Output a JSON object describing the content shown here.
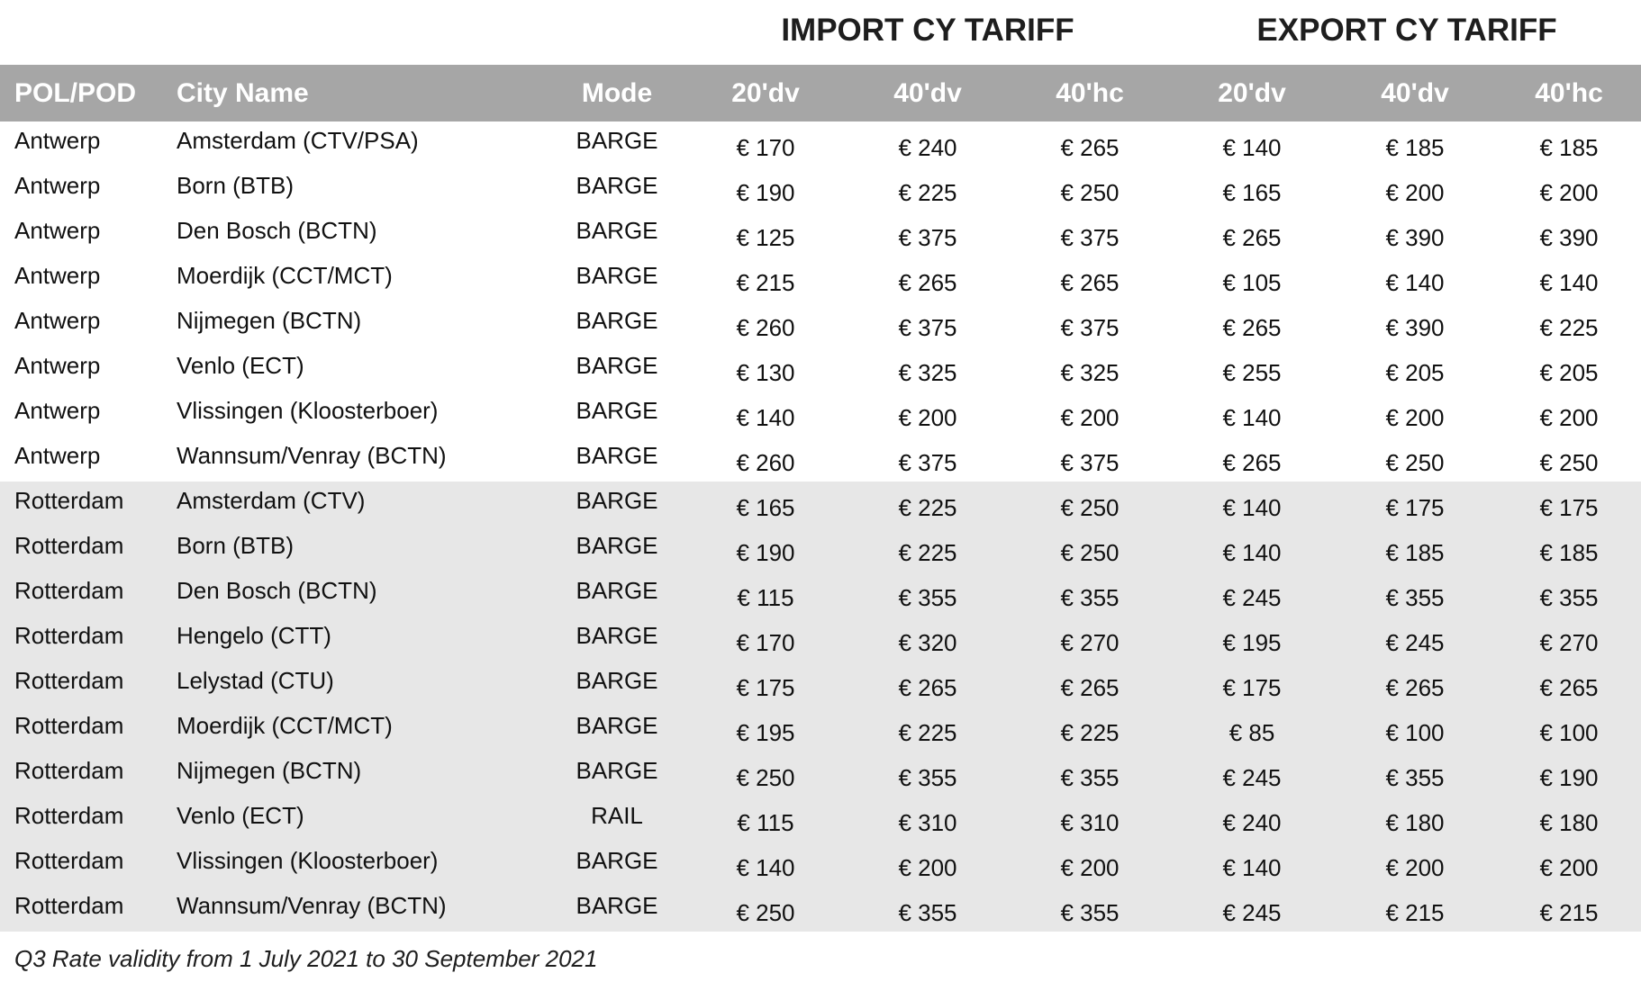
{
  "group_headers": {
    "import": "IMPORT CY TARIFF",
    "export": "EXPORT CY TARIFF"
  },
  "columns": [
    "POL/POD",
    "City Name",
    "Mode",
    "20'dv",
    "40'dv",
    "40'hc",
    "20'dv",
    "40'dv",
    "40'hc"
  ],
  "rows": [
    {
      "pol": "Antwerp",
      "city": "Amsterdam (CTV/PSA)",
      "mode": "BARGE",
      "imp": [
        "€ 170",
        "€ 240",
        "€ 265"
      ],
      "exp": [
        "€ 140",
        "€ 185",
        "€ 185"
      ]
    },
    {
      "pol": "Antwerp",
      "city": "Born (BTB)",
      "mode": "BARGE",
      "imp": [
        "€ 190",
        "€ 225",
        "€ 250"
      ],
      "exp": [
        "€ 165",
        "€ 200",
        "€ 200"
      ]
    },
    {
      "pol": "Antwerp",
      "city": "Den Bosch (BCTN)",
      "mode": "BARGE",
      "imp": [
        "€ 125",
        "€ 375",
        "€ 375"
      ],
      "exp": [
        "€ 265",
        "€ 390",
        "€ 390"
      ]
    },
    {
      "pol": "Antwerp",
      "city": "Moerdijk (CCT/MCT)",
      "mode": "BARGE",
      "imp": [
        "€ 215",
        "€ 265",
        "€ 265"
      ],
      "exp": [
        "€ 105",
        "€ 140",
        "€ 140"
      ]
    },
    {
      "pol": "Antwerp",
      "city": "Nijmegen (BCTN)",
      "mode": "BARGE",
      "imp": [
        "€ 260",
        "€ 375",
        "€ 375"
      ],
      "exp": [
        "€ 265",
        "€ 390",
        "€ 225"
      ]
    },
    {
      "pol": "Antwerp",
      "city": "Venlo (ECT)",
      "mode": "BARGE",
      "imp": [
        "€ 130",
        "€ 325",
        "€ 325"
      ],
      "exp": [
        "€ 255",
        "€ 205",
        "€ 205"
      ]
    },
    {
      "pol": "Antwerp",
      "city": "Vlissingen (Kloosterboer)",
      "mode": "BARGE",
      "imp": [
        "€ 140",
        "€ 200",
        "€ 200"
      ],
      "exp": [
        "€ 140",
        "€ 200",
        "€ 200"
      ]
    },
    {
      "pol": "Antwerp",
      "city": "Wannsum/Venray (BCTN)",
      "mode": "BARGE",
      "imp": [
        "€ 260",
        "€ 375",
        "€ 375"
      ],
      "exp": [
        "€ 265",
        "€ 250",
        "€ 250"
      ]
    },
    {
      "pol": "Rotterdam",
      "city": "Amsterdam (CTV)",
      "mode": "BARGE",
      "imp": [
        "€ 165",
        "€ 225",
        "€ 250"
      ],
      "exp": [
        "€ 140",
        "€ 175",
        "€ 175"
      ]
    },
    {
      "pol": "Rotterdam",
      "city": "Born (BTB)",
      "mode": "BARGE",
      "imp": [
        "€ 190",
        "€ 225",
        "€ 250"
      ],
      "exp": [
        "€ 140",
        "€ 185",
        "€ 185"
      ]
    },
    {
      "pol": "Rotterdam",
      "city": "Den Bosch (BCTN)",
      "mode": "BARGE",
      "imp": [
        "€ 115",
        "€ 355",
        "€ 355"
      ],
      "exp": [
        "€ 245",
        "€ 355",
        "€ 355"
      ]
    },
    {
      "pol": "Rotterdam",
      "city": "Hengelo (CTT)",
      "mode": "BARGE",
      "imp": [
        "€ 170",
        "€ 320",
        "€ 270"
      ],
      "exp": [
        "€ 195",
        "€ 245",
        "€ 270"
      ]
    },
    {
      "pol": "Rotterdam",
      "city": "Lelystad (CTU)",
      "mode": "BARGE",
      "imp": [
        "€ 175",
        "€ 265",
        "€ 265"
      ],
      "exp": [
        "€ 175",
        "€ 265",
        "€ 265"
      ]
    },
    {
      "pol": "Rotterdam",
      "city": "Moerdijk (CCT/MCT)",
      "mode": "BARGE",
      "imp": [
        "€ 195",
        "€ 225",
        "€ 225"
      ],
      "exp": [
        "€ 85",
        "€ 100",
        "€ 100"
      ]
    },
    {
      "pol": "Rotterdam",
      "city": "Nijmegen (BCTN)",
      "mode": "BARGE",
      "imp": [
        "€ 250",
        "€ 355",
        "€ 355"
      ],
      "exp": [
        "€ 245",
        "€ 355",
        "€ 190"
      ]
    },
    {
      "pol": "Rotterdam",
      "city": "Venlo (ECT)",
      "mode": "RAIL",
      "imp": [
        "€ 115",
        "€ 310",
        "€ 310"
      ],
      "exp": [
        "€ 240",
        "€ 180",
        "€ 180"
      ]
    },
    {
      "pol": "Rotterdam",
      "city": "Vlissingen (Kloosterboer)",
      "mode": "BARGE",
      "imp": [
        "€ 140",
        "€ 200",
        "€ 200"
      ],
      "exp": [
        "€ 140",
        "€ 200",
        "€ 200"
      ]
    },
    {
      "pol": "Rotterdam",
      "city": "Wannsum/Venray (BCTN)",
      "mode": "BARGE",
      "imp": [
        "€ 250",
        "€ 355",
        "€ 355"
      ],
      "exp": [
        "€ 245",
        "€ 215",
        "€ 215"
      ]
    }
  ],
  "footnote": "Q3 Rate validity from 1 July 2021 to 30 September 2021",
  "colors": {
    "header_bg": "#a6a6a6",
    "group_b_bg": "#e7e7e7",
    "header_text": "#ffffff"
  }
}
